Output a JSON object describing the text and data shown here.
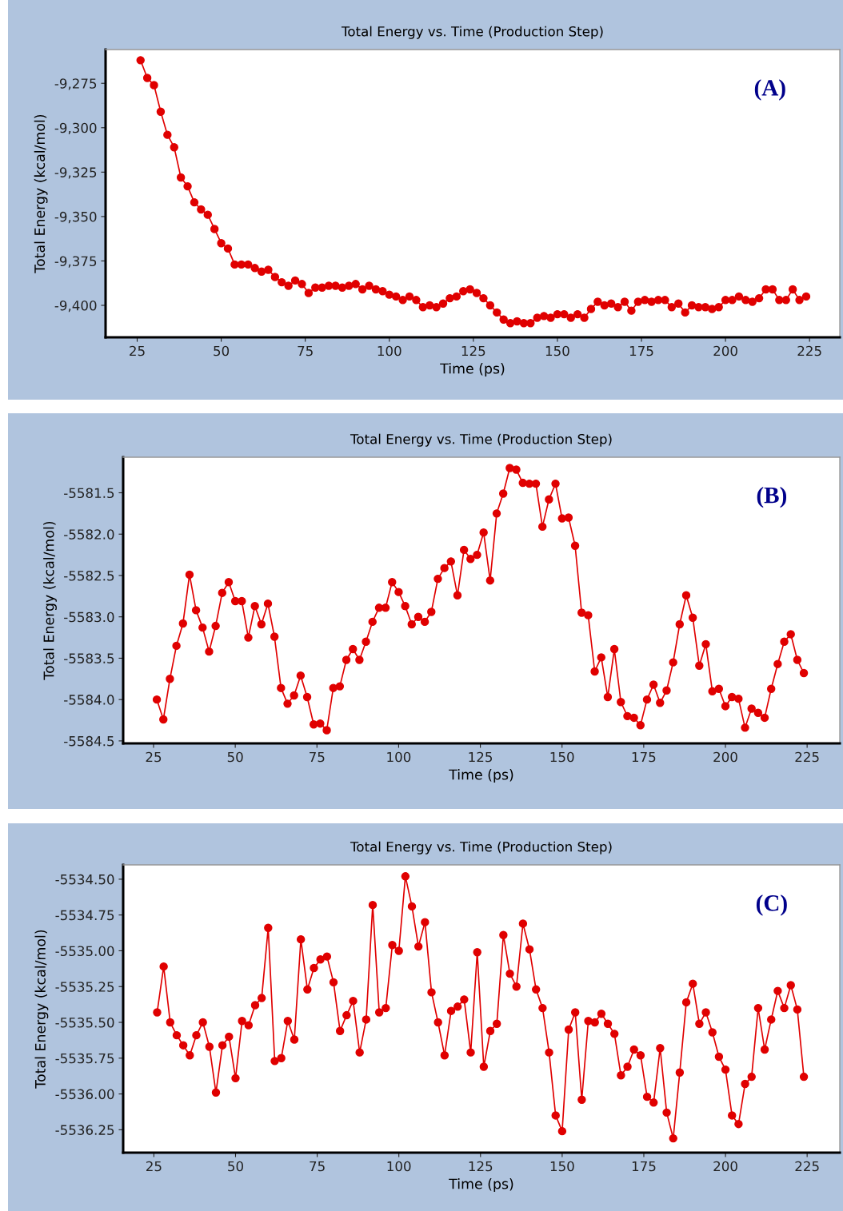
{
  "chart_data": [
    {
      "type": "line",
      "title": "Total Energy vs. Time (Production Step)",
      "xlabel": "Time (ps)",
      "ylabel": "Total Energy (kcal/mol)",
      "annotations": [
        "(A)"
      ],
      "marker": "circle",
      "line_style": "solid",
      "grid": false,
      "xlim": [
        15.6,
        234
      ],
      "xticks": [
        25,
        50,
        75,
        100,
        125,
        150,
        175,
        200,
        225
      ],
      "ylim": [
        -9418,
        -9256
      ],
      "yticks": [
        {
          "value": -9275,
          "label": "-9,275"
        },
        {
          "value": -9300,
          "label": "-9,300"
        },
        {
          "value": -9325,
          "label": "-9,325"
        },
        {
          "value": -9350,
          "label": "-9,350"
        },
        {
          "value": -9375,
          "label": "-9,375"
        },
        {
          "value": -9400,
          "label": "-9,400"
        }
      ],
      "x": [
        26,
        28,
        30,
        32,
        34,
        36,
        38,
        40,
        42,
        44,
        46,
        48,
        50,
        52,
        54,
        56,
        58,
        60,
        62,
        64,
        66,
        68,
        70,
        72,
        74,
        76,
        78,
        80,
        82,
        84,
        86,
        88,
        90,
        92,
        94,
        96,
        98,
        100,
        102,
        104,
        106,
        108,
        110,
        112,
        114,
        116,
        118,
        120,
        122,
        124,
        126,
        128,
        130,
        132,
        134,
        136,
        138,
        140,
        142,
        144,
        146,
        148,
        150,
        152,
        154,
        156,
        158,
        160,
        162,
        164,
        166,
        168,
        170,
        172,
        174,
        176,
        178,
        180,
        182,
        184,
        186,
        188,
        190,
        192,
        194,
        196,
        198,
        200,
        202,
        204,
        206,
        208,
        210,
        212,
        214,
        216,
        218,
        220,
        222,
        224
      ],
      "series": [
        {
          "color": "#e00000",
          "values": [
            -9262,
            -9272,
            -9276,
            -9291,
            -9304,
            -9311,
            -9328,
            -9333,
            -9342,
            -9346,
            -9349,
            -9357,
            -9365,
            -9368,
            -9377,
            -9377,
            -9377,
            -9379,
            -9381,
            -9380,
            -9384,
            -9387,
            -9389,
            -9386,
            -9388,
            -9393,
            -9390,
            -9390,
            -9389,
            -9389,
            -9390,
            -9389,
            -9388,
            -9391,
            -9389,
            -9391,
            -9392,
            -9394,
            -9395,
            -9397,
            -9395,
            -9397,
            -9401,
            -9400,
            -9401,
            -9399,
            -9396,
            -9395,
            -9392,
            -9391,
            -9393,
            -9396,
            -9400,
            -9404,
            -9408,
            -9410,
            -9409,
            -9410,
            -9410,
            -9407,
            -9406,
            -9407,
            -9405,
            -9405,
            -9407,
            -9405,
            -9407,
            -9402,
            -9398,
            -9400,
            -9399,
            -9401,
            -9398,
            -9403,
            -9398,
            -9397,
            -9398,
            -9397,
            -9397,
            -9401,
            -9399,
            -9404,
            -9400,
            -9401,
            -9401,
            -9402,
            -9401,
            -9397,
            -9397,
            -9395,
            -9397,
            -9398,
            -9396,
            -9391,
            -9391,
            -9397,
            -9397,
            -9391,
            -9397,
            -9395
          ]
        }
      ]
    },
    {
      "type": "line",
      "title": "Total Energy vs. Time (Production Step)",
      "xlabel": "Time (ps)",
      "ylabel": "Total Energy (kcal/mol)",
      "annotations": [
        "(B)"
      ],
      "marker": "circle",
      "line_style": "solid",
      "grid": false,
      "xlim": [
        15.7,
        235
      ],
      "xticks": [
        25,
        50,
        75,
        100,
        125,
        150,
        175,
        200,
        225
      ],
      "ylim": [
        -5584.53,
        -5581.07
      ],
      "yticks": [
        {
          "value": -5581.5,
          "label": "-5581.5"
        },
        {
          "value": -5582.0,
          "label": "-5582.0"
        },
        {
          "value": -5582.5,
          "label": "-5582.5"
        },
        {
          "value": -5583.0,
          "label": "-5583.0"
        },
        {
          "value": -5583.5,
          "label": "-5583.5"
        },
        {
          "value": -5584.0,
          "label": "-5584.0"
        },
        {
          "value": -5584.5,
          "label": "-5584.5"
        }
      ],
      "x": [
        26,
        28,
        30,
        32,
        34,
        36,
        38,
        40,
        42,
        44,
        46,
        48,
        50,
        52,
        54,
        56,
        58,
        60,
        62,
        64,
        66,
        68,
        70,
        72,
        74,
        76,
        78,
        80,
        82,
        84,
        86,
        88,
        90,
        92,
        94,
        96,
        98,
        100,
        102,
        104,
        106,
        108,
        110,
        112,
        114,
        116,
        118,
        120,
        122,
        124,
        126,
        128,
        130,
        132,
        134,
        136,
        138,
        140,
        142,
        144,
        146,
        148,
        150,
        152,
        154,
        156,
        158,
        160,
        162,
        164,
        166,
        168,
        170,
        172,
        174,
        176,
        178,
        180,
        182,
        184,
        186,
        188,
        190,
        192,
        194,
        196,
        198,
        200,
        202,
        204,
        206,
        208,
        210,
        212,
        214,
        216,
        218,
        220,
        222,
        224
      ],
      "series": [
        {
          "color": "#e00000",
          "values": [
            -5584.0,
            -5584.24,
            -5583.75,
            -5583.35,
            -5583.08,
            -5582.49,
            -5582.92,
            -5583.13,
            -5583.42,
            -5583.11,
            -5582.71,
            -5582.58,
            -5582.81,
            -5582.81,
            -5583.25,
            -5582.87,
            -5583.09,
            -5582.84,
            -5583.24,
            -5583.86,
            -5584.05,
            -5583.95,
            -5583.71,
            -5583.97,
            -5584.3,
            -5584.29,
            -5584.37,
            -5583.86,
            -5583.84,
            -5583.52,
            -5583.39,
            -5583.52,
            -5583.3,
            -5583.06,
            -5582.89,
            -5582.89,
            -5582.58,
            -5582.7,
            -5582.87,
            -5583.09,
            -5583.0,
            -5583.06,
            -5582.94,
            -5582.54,
            -5582.41,
            -5582.33,
            -5582.74,
            -5582.19,
            -5582.3,
            -5582.25,
            -5581.98,
            -5582.56,
            -5581.75,
            -5581.51,
            -5581.2,
            -5581.22,
            -5581.38,
            -5581.39,
            -5581.39,
            -5581.91,
            -5581.58,
            -5581.39,
            -5581.81,
            -5581.8,
            -5582.14,
            -5582.95,
            -5582.98,
            -5583.66,
            -5583.49,
            -5583.97,
            -5583.39,
            -5584.03,
            -5584.2,
            -5584.22,
            -5584.31,
            -5584.0,
            -5583.82,
            -5584.04,
            -5583.89,
            -5583.55,
            -5583.09,
            -5582.74,
            -5583.01,
            -5583.59,
            -5583.33,
            -5583.9,
            -5583.87,
            -5584.08,
            -5583.97,
            -5583.99,
            -5584.34,
            -5584.11,
            -5584.16,
            -5584.22,
            -5583.87,
            -5583.57,
            -5583.3,
            -5583.21,
            -5583.52,
            -5583.68
          ]
        }
      ]
    },
    {
      "type": "line",
      "title": "Total Energy vs. Time (Production Step)",
      "xlabel": "Time (ps)",
      "ylabel": "Total Energy (kcal/mol)",
      "annotations": [
        "(C)"
      ],
      "marker": "circle",
      "line_style": "solid",
      "grid": false,
      "xlim": [
        15.6,
        235
      ],
      "xticks": [
        25,
        50,
        75,
        100,
        125,
        150,
        175,
        200,
        225
      ],
      "ylim": [
        -5536.41,
        -5534.4
      ],
      "yticks": [
        {
          "value": -5534.5,
          "label": "-5534.50"
        },
        {
          "value": -5534.75,
          "label": "-5534.75"
        },
        {
          "value": -5535.0,
          "label": "-5535.00"
        },
        {
          "value": -5535.25,
          "label": "-5535.25"
        },
        {
          "value": -5535.5,
          "label": "-5535.50"
        },
        {
          "value": -5535.75,
          "label": "-5535.75"
        },
        {
          "value": -5536.0,
          "label": "-5536.00"
        },
        {
          "value": -5536.25,
          "label": "-5536.25"
        }
      ],
      "x": [
        26,
        28,
        30,
        32,
        34,
        36,
        38,
        40,
        42,
        44,
        46,
        48,
        50,
        52,
        54,
        56,
        58,
        60,
        62,
        64,
        66,
        68,
        70,
        72,
        74,
        76,
        78,
        80,
        82,
        84,
        86,
        88,
        90,
        92,
        94,
        96,
        98,
        100,
        102,
        104,
        106,
        108,
        110,
        112,
        114,
        116,
        118,
        120,
        122,
        124,
        126,
        128,
        130,
        132,
        134,
        136,
        138,
        140,
        142,
        144,
        146,
        148,
        150,
        152,
        154,
        156,
        158,
        160,
        162,
        164,
        166,
        168,
        170,
        172,
        174,
        176,
        178,
        180,
        182,
        184,
        186,
        188,
        190,
        192,
        194,
        196,
        198,
        200,
        202,
        204,
        206,
        208,
        210,
        212,
        214,
        216,
        218,
        220,
        222,
        224
      ],
      "series": [
        {
          "color": "#e00000",
          "values": [
            -5535.43,
            -5535.11,
            -5535.5,
            -5535.59,
            -5535.66,
            -5535.73,
            -5535.59,
            -5535.5,
            -5535.67,
            -5535.99,
            -5535.66,
            -5535.6,
            -5535.89,
            -5535.49,
            -5535.52,
            -5535.38,
            -5535.33,
            -5534.84,
            -5535.77,
            -5535.75,
            -5535.49,
            -5535.62,
            -5534.92,
            -5535.27,
            -5535.12,
            -5535.06,
            -5535.04,
            -5535.22,
            -5535.56,
            -5535.45,
            -5535.35,
            -5535.71,
            -5535.48,
            -5534.68,
            -5535.43,
            -5535.4,
            -5534.96,
            -5535.0,
            -5534.48,
            -5534.69,
            -5534.97,
            -5534.8,
            -5535.29,
            -5535.5,
            -5535.73,
            -5535.42,
            -5535.39,
            -5535.34,
            -5535.71,
            -5535.01,
            -5535.81,
            -5535.56,
            -5535.51,
            -5534.89,
            -5535.16,
            -5535.25,
            -5534.81,
            -5534.99,
            -5535.27,
            -5535.4,
            -5535.71,
            -5536.15,
            -5536.26,
            -5535.55,
            -5535.43,
            -5536.04,
            -5535.49,
            -5535.5,
            -5535.44,
            -5535.51,
            -5535.58,
            -5535.87,
            -5535.81,
            -5535.69,
            -5535.73,
            -5536.02,
            -5536.06,
            -5535.68,
            -5536.13,
            -5536.31,
            -5535.85,
            -5535.36,
            -5535.23,
            -5535.51,
            -5535.43,
            -5535.57,
            -5535.74,
            -5535.83,
            -5536.15,
            -5536.21,
            -5535.93,
            -5535.88,
            -5535.4,
            -5535.69,
            -5535.48,
            -5535.28,
            -5535.4,
            -5535.24,
            -5535.41,
            -5535.88
          ]
        }
      ]
    }
  ]
}
